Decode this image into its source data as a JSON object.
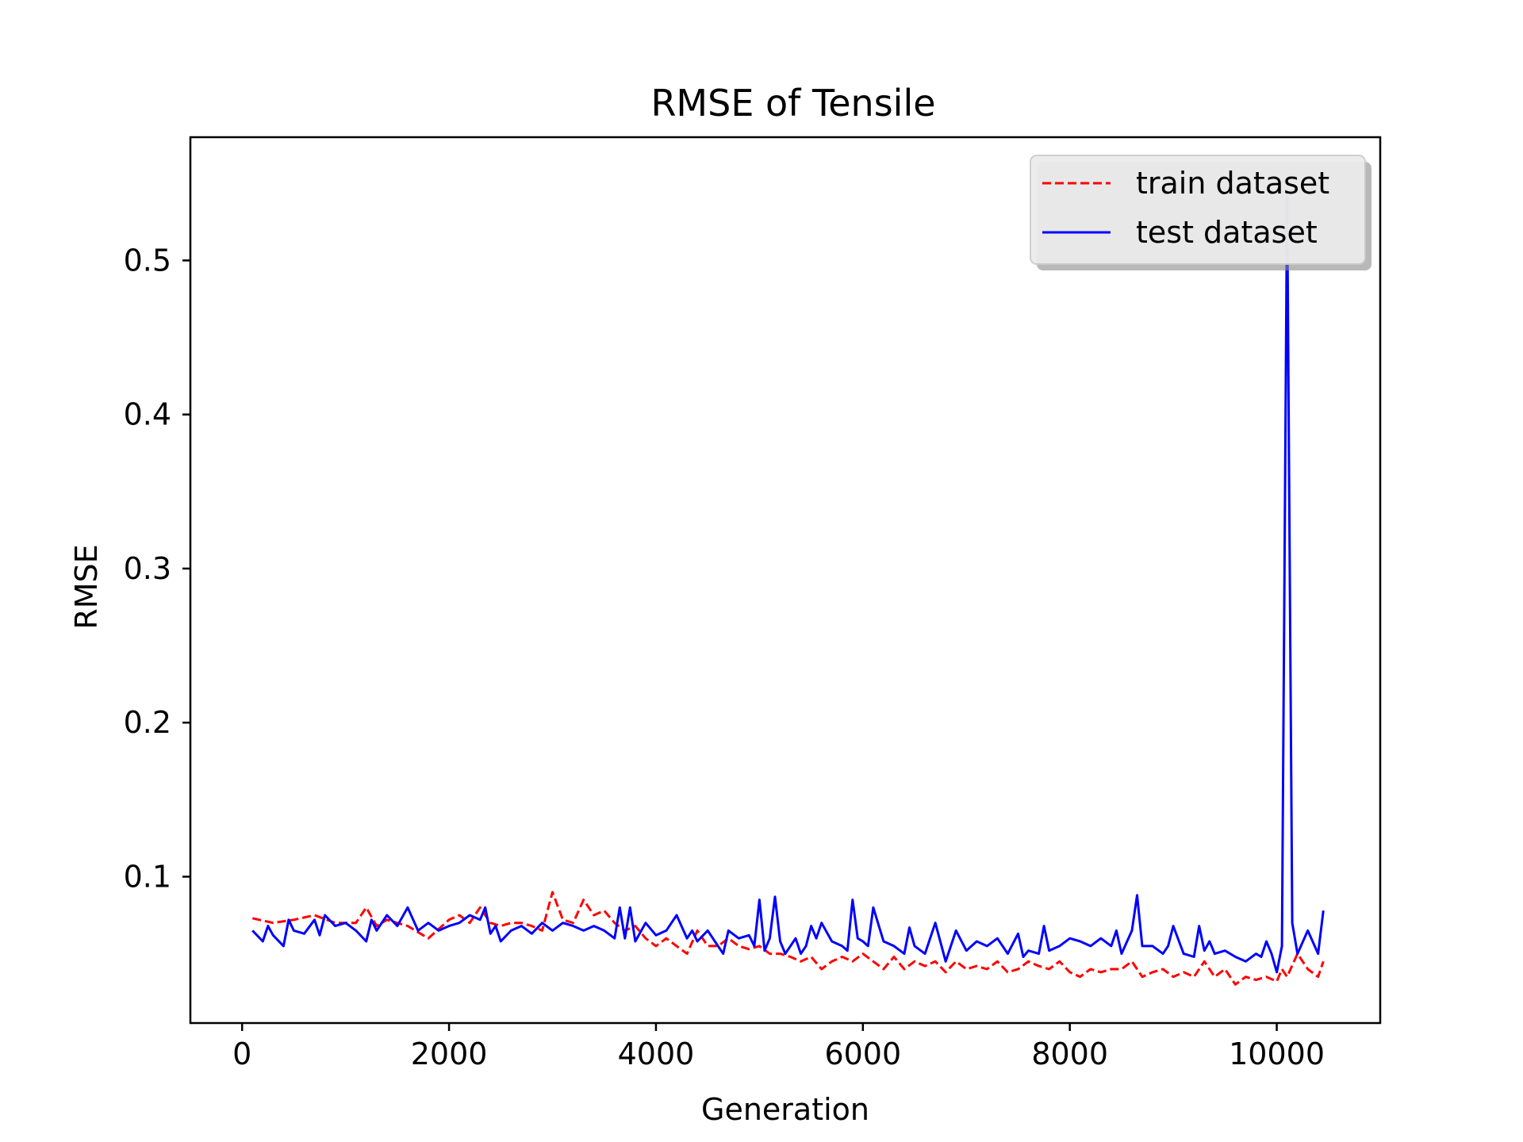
{
  "chart_data": {
    "type": "line",
    "title": "RMSE of Tensile",
    "xlabel": "Generation",
    "ylabel": "RMSE",
    "xlim": [
      -500,
      11000
    ],
    "ylim": [
      0.005,
      0.58
    ],
    "xticks": [
      0,
      2000,
      4000,
      6000,
      8000,
      10000
    ],
    "xtick_labels": [
      "0",
      "2000",
      "4000",
      "6000",
      "8000",
      "10000"
    ],
    "yticks": [
      0.1,
      0.2,
      0.3,
      0.4,
      0.5
    ],
    "ytick_labels": [
      "0.1",
      "0.2",
      "0.3",
      "0.4",
      "0.5"
    ],
    "grid": false,
    "legend_position": "top-right",
    "series": [
      {
        "name": "train dataset",
        "color": "#ff0000",
        "style": "dashed",
        "x": [
          100,
          300,
          500,
          700,
          900,
          1100,
          1200,
          1300,
          1400,
          1600,
          1800,
          2000,
          2100,
          2200,
          2300,
          2400,
          2500,
          2600,
          2700,
          2800,
          2900,
          3000,
          3100,
          3200,
          3300,
          3400,
          3500,
          3600,
          3700,
          3800,
          3900,
          4000,
          4100,
          4200,
          4300,
          4400,
          4500,
          4600,
          4700,
          4800,
          4900,
          5000,
          5100,
          5200,
          5300,
          5400,
          5500,
          5600,
          5700,
          5800,
          5900,
          6000,
          6100,
          6200,
          6300,
          6400,
          6500,
          6600,
          6700,
          6800,
          6900,
          7000,
          7100,
          7200,
          7300,
          7400,
          7500,
          7600,
          7700,
          7800,
          7900,
          8000,
          8100,
          8200,
          8300,
          8400,
          8500,
          8600,
          8700,
          8800,
          8900,
          9000,
          9100,
          9200,
          9300,
          9400,
          9500,
          9600,
          9700,
          9800,
          9900,
          10000,
          10050,
          10100,
          10200,
          10300,
          10400,
          10450
        ],
        "y": [
          0.073,
          0.07,
          0.072,
          0.075,
          0.07,
          0.07,
          0.08,
          0.068,
          0.072,
          0.068,
          0.06,
          0.072,
          0.075,
          0.07,
          0.08,
          0.07,
          0.068,
          0.07,
          0.07,
          0.068,
          0.065,
          0.09,
          0.072,
          0.07,
          0.085,
          0.075,
          0.078,
          0.07,
          0.065,
          0.068,
          0.06,
          0.055,
          0.06,
          0.055,
          0.05,
          0.065,
          0.055,
          0.055,
          0.06,
          0.055,
          0.053,
          0.055,
          0.05,
          0.05,
          0.048,
          0.045,
          0.048,
          0.04,
          0.045,
          0.048,
          0.045,
          0.05,
          0.045,
          0.04,
          0.048,
          0.04,
          0.045,
          0.042,
          0.045,
          0.038,
          0.045,
          0.04,
          0.042,
          0.04,
          0.045,
          0.038,
          0.04,
          0.045,
          0.042,
          0.04,
          0.045,
          0.038,
          0.035,
          0.04,
          0.038,
          0.04,
          0.04,
          0.045,
          0.035,
          0.038,
          0.04,
          0.035,
          0.038,
          0.035,
          0.045,
          0.035,
          0.04,
          0.03,
          0.035,
          0.033,
          0.035,
          0.032,
          0.04,
          0.035,
          0.05,
          0.04,
          0.035,
          0.045
        ]
      },
      {
        "name": "test dataset",
        "color": "#0000ff",
        "style": "solid",
        "x": [
          100,
          200,
          250,
          300,
          400,
          450,
          500,
          600,
          700,
          750,
          800,
          900,
          1000,
          1100,
          1200,
          1250,
          1300,
          1400,
          1500,
          1600,
          1700,
          1800,
          1900,
          2000,
          2100,
          2200,
          2300,
          2350,
          2400,
          2450,
          2500,
          2600,
          2700,
          2800,
          2900,
          3000,
          3100,
          3200,
          3300,
          3400,
          3500,
          3600,
          3650,
          3700,
          3750,
          3800,
          3900,
          4000,
          4100,
          4200,
          4300,
          4350,
          4400,
          4500,
          4600,
          4650,
          4700,
          4800,
          4900,
          4950,
          5000,
          5050,
          5100,
          5150,
          5200,
          5250,
          5300,
          5350,
          5400,
          5450,
          5500,
          5550,
          5600,
          5700,
          5800,
          5850,
          5900,
          5950,
          6000,
          6050,
          6100,
          6200,
          6300,
          6400,
          6450,
          6500,
          6600,
          6700,
          6800,
          6850,
          6900,
          7000,
          7100,
          7200,
          7300,
          7400,
          7500,
          7550,
          7600,
          7700,
          7750,
          7800,
          7900,
          8000,
          8100,
          8200,
          8300,
          8400,
          8450,
          8500,
          8600,
          8650,
          8700,
          8800,
          8900,
          8950,
          9000,
          9100,
          9200,
          9250,
          9300,
          9350,
          9400,
          9500,
          9600,
          9700,
          9800,
          9850,
          9900,
          9950,
          10000,
          10050,
          10100,
          10150,
          10200,
          10300,
          10400,
          10450
        ],
        "y": [
          0.065,
          0.058,
          0.068,
          0.062,
          0.055,
          0.072,
          0.065,
          0.063,
          0.072,
          0.062,
          0.075,
          0.068,
          0.07,
          0.065,
          0.058,
          0.072,
          0.065,
          0.075,
          0.068,
          0.08,
          0.065,
          0.07,
          0.065,
          0.068,
          0.07,
          0.075,
          0.072,
          0.08,
          0.063,
          0.068,
          0.058,
          0.065,
          0.068,
          0.063,
          0.07,
          0.065,
          0.07,
          0.068,
          0.065,
          0.068,
          0.065,
          0.06,
          0.08,
          0.06,
          0.08,
          0.058,
          0.07,
          0.062,
          0.065,
          0.075,
          0.06,
          0.065,
          0.058,
          0.065,
          0.055,
          0.05,
          0.065,
          0.06,
          0.062,
          0.055,
          0.085,
          0.052,
          0.06,
          0.087,
          0.058,
          0.05,
          0.055,
          0.06,
          0.05,
          0.055,
          0.068,
          0.06,
          0.07,
          0.058,
          0.055,
          0.052,
          0.085,
          0.06,
          0.058,
          0.055,
          0.08,
          0.058,
          0.055,
          0.05,
          0.067,
          0.055,
          0.05,
          0.07,
          0.045,
          0.055,
          0.065,
          0.052,
          0.058,
          0.055,
          0.06,
          0.05,
          0.063,
          0.048,
          0.052,
          0.05,
          0.068,
          0.052,
          0.055,
          0.06,
          0.058,
          0.055,
          0.06,
          0.055,
          0.065,
          0.05,
          0.065,
          0.088,
          0.055,
          0.055,
          0.05,
          0.055,
          0.068,
          0.05,
          0.048,
          0.068,
          0.052,
          0.058,
          0.05,
          0.052,
          0.048,
          0.045,
          0.05,
          0.048,
          0.058,
          0.05,
          0.038,
          0.055,
          0.545,
          0.07,
          0.05,
          0.065,
          0.05,
          0.078
        ]
      }
    ]
  }
}
